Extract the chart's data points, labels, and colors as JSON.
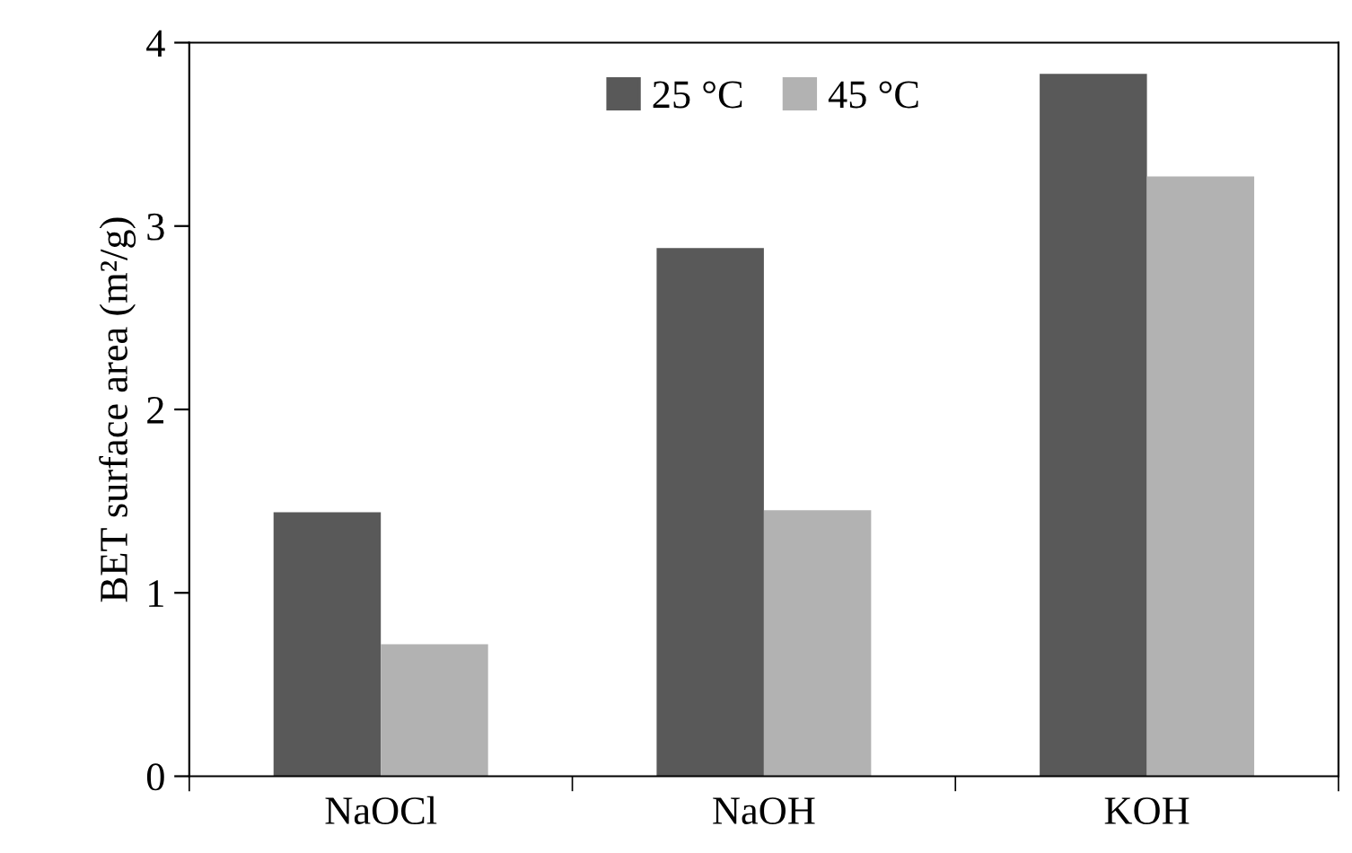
{
  "chart_data": {
    "type": "bar",
    "ylabel": "BET surface area (m²/g)",
    "categories": [
      "NaOCl",
      "NaOH",
      "KOH"
    ],
    "series": [
      {
        "name": "25 °C",
        "color": "#595959",
        "values": [
          1.44,
          2.88,
          3.83
        ]
      },
      {
        "name": "45 °C",
        "color": "#b2b2b2",
        "values": [
          0.72,
          1.45,
          3.27
        ]
      }
    ],
    "ylim": [
      0,
      4
    ],
    "yticks": [
      0,
      1,
      2,
      3,
      4
    ],
    "grid": false,
    "legend": "top"
  }
}
